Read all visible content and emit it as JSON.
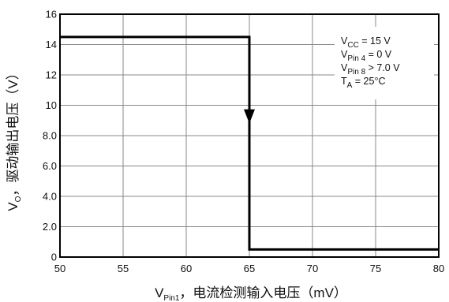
{
  "chart_data": {
    "type": "line",
    "x_ticks": [
      "50",
      "55",
      "60",
      "65",
      "70",
      "75",
      "80"
    ],
    "y_ticks": [
      "0",
      "2.0",
      "4.0",
      "6.0",
      "8.0",
      "10",
      "12",
      "14",
      "16"
    ],
    "xlim": [
      50,
      80
    ],
    "ylim": [
      0,
      16
    ],
    "grid": true,
    "xlabel": {
      "main": "V",
      "sub": "Pin1",
      "rest": "，电流检测输入电压（mV）"
    },
    "ylabel": {
      "main": "V",
      "sub": "O",
      "rest": "，驱动输出电压（V）"
    },
    "series": [
      {
        "x": [
          50,
          65,
          65,
          80
        ],
        "y": [
          14.5,
          14.5,
          0.5,
          0.5
        ]
      }
    ],
    "arrow": {
      "x": 65,
      "y": 8.8,
      "direction": "down"
    },
    "legend": {
      "placement": "top-right",
      "entries": [
        {
          "main": "V",
          "sub": "CC",
          "rest": " = 15 V"
        },
        {
          "main": "V",
          "sub": "Pin 4",
          "rest": " = 0 V"
        },
        {
          "main": "V",
          "sub": "Pin 8",
          "rest": " > 7.0 V"
        },
        {
          "main": "T",
          "sub": "A",
          "rest": " = 25°C"
        }
      ]
    },
    "colors": {
      "line": "#000000",
      "grid": "#888888",
      "frame": "#000000"
    }
  }
}
